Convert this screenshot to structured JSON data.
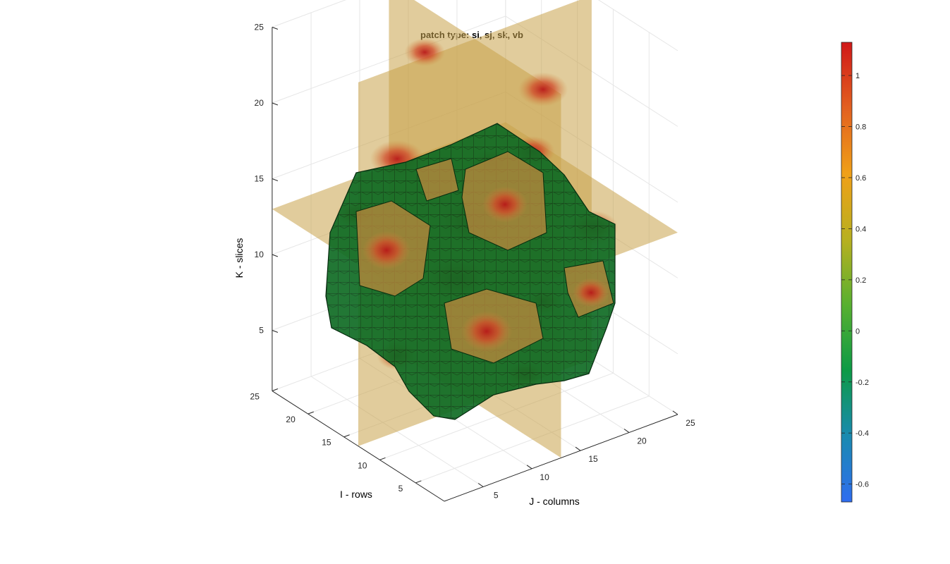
{
  "chart_data": {
    "type": "heatmap",
    "title": "patch type: si, sj, sk, vb",
    "xlabel": "J - columns",
    "ylabel": "I - rows",
    "zlabel": "K - slices",
    "xlim": [
      1,
      25
    ],
    "ylim": [
      1,
      25
    ],
    "zlim": [
      1,
      25
    ],
    "x_ticks": [
      "5",
      "10",
      "15",
      "20",
      "25"
    ],
    "y_ticks": [
      "5",
      "10",
      "15",
      "20",
      "25"
    ],
    "z_ticks": [
      "5",
      "10",
      "15",
      "20",
      "25"
    ],
    "grid": true,
    "view": "3d",
    "colormap": "parula-like (blue-green-yellow-red)",
    "clim": [
      -0.67,
      1.13
    ],
    "colorbar": {
      "location": "right",
      "ticks": [
        "1",
        "0.8",
        "0.6",
        "0.4",
        "0.2",
        "0",
        "-0.2",
        "-0.4",
        "-0.6"
      ],
      "tick_values": [
        1,
        0.8,
        0.6,
        0.4,
        0.2,
        0,
        -0.2,
        -0.4,
        -0.6
      ]
    },
    "layers": [
      {
        "kind": "slice-i",
        "value": 13,
        "alpha": 0.55
      },
      {
        "kind": "slice-j",
        "value": 13,
        "alpha": 0.55
      },
      {
        "kind": "slice-k",
        "value": 13,
        "alpha": 0.55
      },
      {
        "kind": "voxel-boundary",
        "face_color": "#0f6b24",
        "edge_color": "#000000"
      }
    ]
  },
  "colors": {
    "voxel": "#0f6b24",
    "voxel_light": "#1a8a30",
    "axis": "#262626",
    "grid": "#e6e6e6",
    "colormap_stops": [
      "#2f6df0",
      "#1a8ab0",
      "#0c9a46",
      "#58b030",
      "#b8b020",
      "#f0a018",
      "#e26020",
      "#d01818"
    ]
  }
}
